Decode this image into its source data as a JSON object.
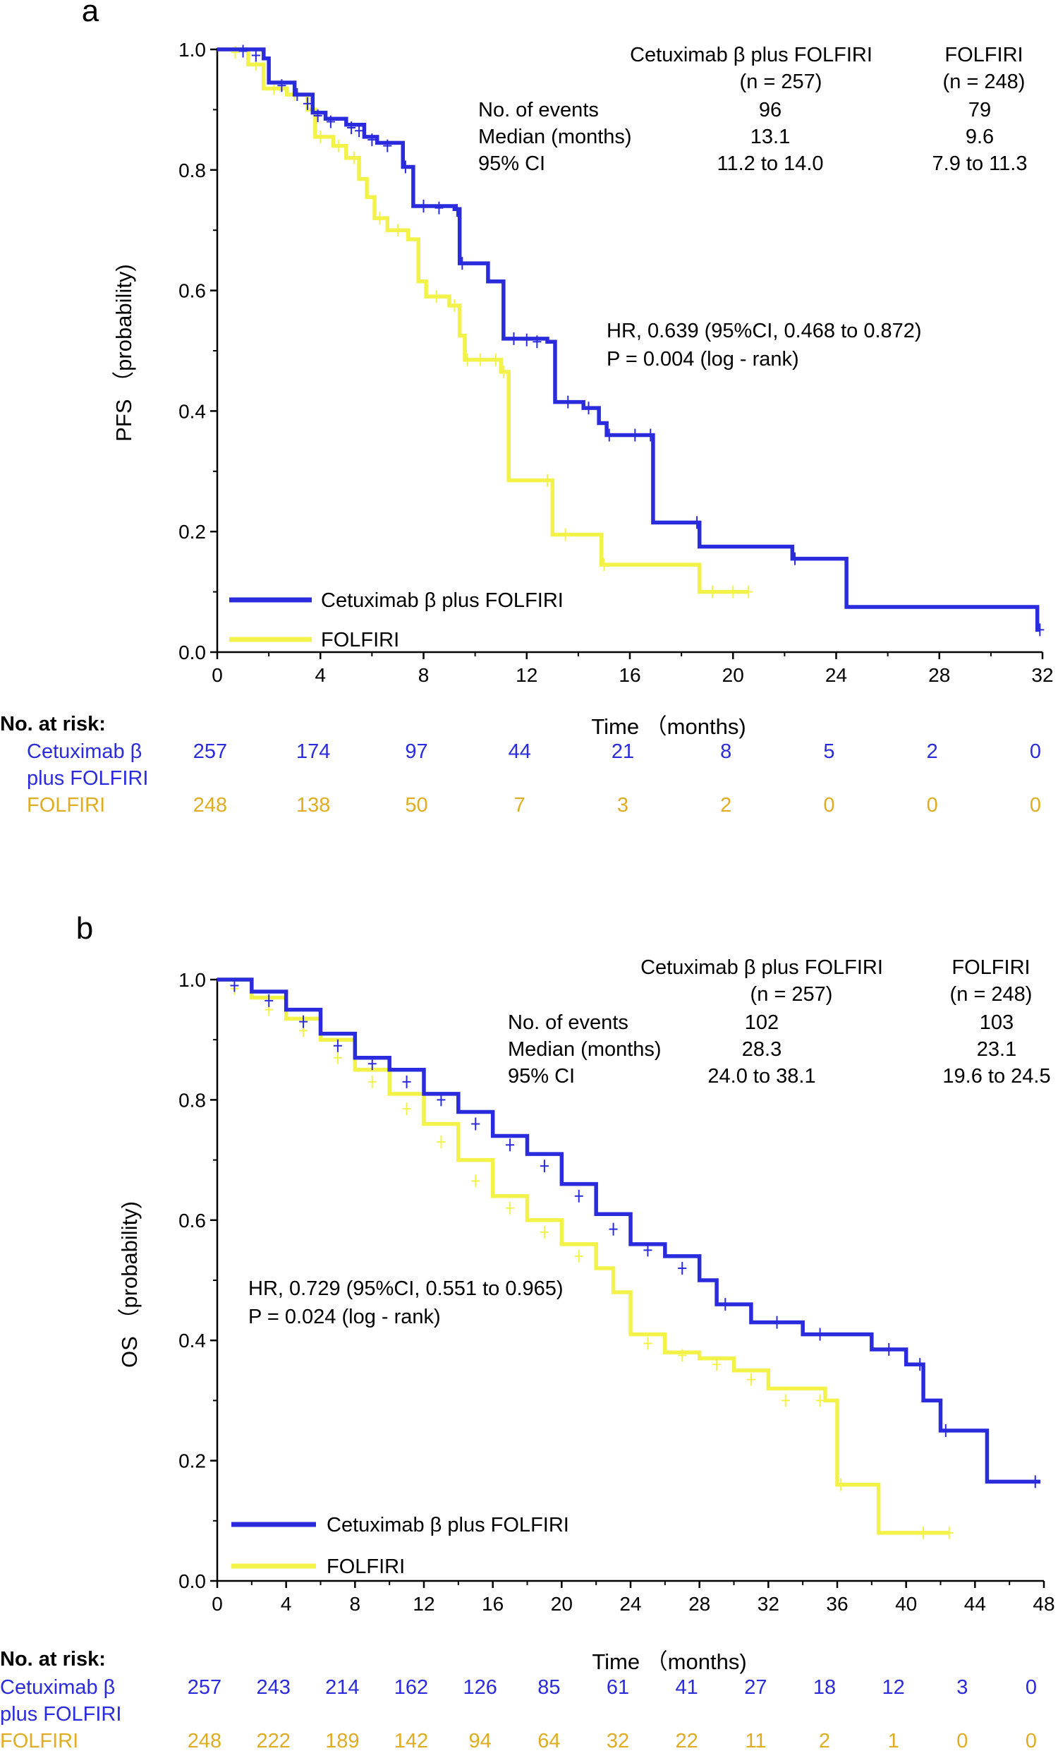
{
  "colors": {
    "treatment": "#2b2bde",
    "control": "#f2f249",
    "risk_control": "#e0ad22",
    "axis": "#000000"
  },
  "chart_data": [
    {
      "type": "line",
      "panel": "a",
      "ylabel": "PFS （probability)",
      "xlabel": "Time （months)",
      "xlim": [
        0,
        32
      ],
      "ylim": [
        0,
        1
      ],
      "xticks": [
        "0",
        "4",
        "8",
        "12",
        "16",
        "20",
        "24",
        "28",
        "32"
      ],
      "yticks": [
        "0.0",
        "0.2",
        "0.4",
        "0.6",
        "0.8",
        "1.0"
      ],
      "legend": [
        "Cetuximab β plus FOLFIRI",
        "FOLFIRI"
      ],
      "stats": {
        "col_headers": [
          [
            "Cetuximab β plus FOLFIRI",
            "(n = 257)"
          ],
          [
            "FOLFIRI",
            "(n = 248)"
          ]
        ],
        "rows": [
          {
            "label": "No. of events",
            "treat": "96",
            "ctrl": "79"
          },
          {
            "label": "Median (months)",
            "treat": "13.1",
            "ctrl": "9.6"
          },
          {
            "label": "95% CI",
            "treat": "11.2 to 14.0",
            "ctrl": "7.9 to 11.3"
          }
        ]
      },
      "hr_text": [
        "HR, 0.639 (95%CI, 0.468 to 0.872)",
        "P = 0.004 (log - rank)"
      ],
      "risk": {
        "title": "No. at risk:",
        "treat_label": [
          "Cetuximab β",
          "plus FOLFIRI"
        ],
        "ctrl_label": "FOLFIRI",
        "treat": [
          "257",
          "174",
          "97",
          "44",
          "21",
          "8",
          "5",
          "2",
          "0"
        ],
        "ctrl": [
          "248",
          "138",
          "50",
          "7",
          "3",
          "2",
          "0",
          "0",
          "0"
        ]
      },
      "series": [
        {
          "name": "Cetuximab β plus FOLFIRI",
          "steps": [
            [
              0,
              1.0
            ],
            [
              1.8,
              0.985
            ],
            [
              2.0,
              0.945
            ],
            [
              3.0,
              0.925
            ],
            [
              3.7,
              0.895
            ],
            [
              4.2,
              0.885
            ],
            [
              5.0,
              0.875
            ],
            [
              5.7,
              0.855
            ],
            [
              6.2,
              0.845
            ],
            [
              7.2,
              0.805
            ],
            [
              7.6,
              0.74
            ],
            [
              9.2,
              0.735
            ],
            [
              9.4,
              0.645
            ],
            [
              10.5,
              0.615
            ],
            [
              11.1,
              0.52
            ],
            [
              12.8,
              0.515
            ],
            [
              13.1,
              0.415
            ],
            [
              14.2,
              0.405
            ],
            [
              14.8,
              0.38
            ],
            [
              15.1,
              0.36
            ],
            [
              16.9,
              0.215
            ],
            [
              18.7,
              0.175
            ],
            [
              22.3,
              0.155
            ],
            [
              24.4,
              0.075
            ],
            [
              31.8,
              0.037
            ]
          ],
          "end": 31.9,
          "censor": [
            [
              1.0,
              0.997
            ],
            [
              1.5,
              0.99
            ],
            [
              2.5,
              0.94
            ],
            [
              3.1,
              0.925
            ],
            [
              3.5,
              0.91
            ],
            [
              3.9,
              0.89
            ],
            [
              4.4,
              0.88
            ],
            [
              5.2,
              0.87
            ],
            [
              5.5,
              0.865
            ],
            [
              6.0,
              0.85
            ],
            [
              6.6,
              0.84
            ],
            [
              7.3,
              0.805
            ],
            [
              8.0,
              0.74
            ],
            [
              8.6,
              0.737
            ],
            [
              9.3,
              0.733
            ],
            [
              9.5,
              0.645
            ],
            [
              11.5,
              0.52
            ],
            [
              12.0,
              0.518
            ],
            [
              12.4,
              0.515
            ],
            [
              13.6,
              0.415
            ],
            [
              14.4,
              0.405
            ],
            [
              15.2,
              0.36
            ],
            [
              16.2,
              0.36
            ],
            [
              16.8,
              0.36
            ],
            [
              18.6,
              0.215
            ],
            [
              22.4,
              0.155
            ],
            [
              31.9,
              0.037
            ]
          ]
        },
        {
          "name": "FOLFIRI",
          "steps": [
            [
              0,
              1.0
            ],
            [
              1.2,
              0.975
            ],
            [
              1.8,
              0.935
            ],
            [
              2.7,
              0.925
            ],
            [
              3.5,
              0.9
            ],
            [
              3.8,
              0.855
            ],
            [
              4.5,
              0.84
            ],
            [
              5.0,
              0.82
            ],
            [
              5.5,
              0.785
            ],
            [
              5.8,
              0.755
            ],
            [
              6.1,
              0.72
            ],
            [
              6.6,
              0.7
            ],
            [
              7.4,
              0.685
            ],
            [
              7.8,
              0.615
            ],
            [
              8.1,
              0.59
            ],
            [
              9.0,
              0.575
            ],
            [
              9.4,
              0.525
            ],
            [
              9.6,
              0.485
            ],
            [
              11.0,
              0.465
            ],
            [
              11.3,
              0.285
            ],
            [
              13.0,
              0.195
            ],
            [
              14.9,
              0.145
            ],
            [
              18.7,
              0.1
            ]
          ],
          "end": 20.6,
          "censor": [
            [
              0.7,
              0.995
            ],
            [
              1.5,
              0.975
            ],
            [
              2.2,
              0.935
            ],
            [
              3.0,
              0.925
            ],
            [
              4.0,
              0.855
            ],
            [
              4.7,
              0.84
            ],
            [
              5.3,
              0.82
            ],
            [
              6.3,
              0.72
            ],
            [
              7.0,
              0.7
            ],
            [
              8.5,
              0.59
            ],
            [
              9.2,
              0.575
            ],
            [
              9.7,
              0.485
            ],
            [
              10.2,
              0.485
            ],
            [
              10.8,
              0.485
            ],
            [
              11.1,
              0.465
            ],
            [
              12.8,
              0.285
            ],
            [
              13.5,
              0.195
            ],
            [
              15.0,
              0.145
            ],
            [
              19.2,
              0.1
            ],
            [
              20.0,
              0.1
            ],
            [
              20.6,
              0.1
            ]
          ]
        }
      ]
    },
    {
      "type": "line",
      "panel": "b",
      "ylabel": "OS （probability)",
      "xlabel": "Time （months)",
      "xlim": [
        0,
        48
      ],
      "ylim": [
        0,
        1
      ],
      "xticks": [
        "0",
        "4",
        "8",
        "12",
        "16",
        "20",
        "24",
        "28",
        "32",
        "36",
        "40",
        "44",
        "48"
      ],
      "yticks": [
        "0.0",
        "0.2",
        "0.4",
        "0.6",
        "0.8",
        "1.0"
      ],
      "legend": [
        "Cetuximab β plus FOLFIRI",
        "FOLFIRI"
      ],
      "stats": {
        "col_headers": [
          [
            "Cetuximab β plus FOLFIRI",
            "(n = 257)"
          ],
          [
            "FOLFIRI",
            "(n = 248)"
          ]
        ],
        "rows": [
          {
            "label": "No. of events",
            "treat": "102",
            "ctrl": "103"
          },
          {
            "label": "Median (months)",
            "treat": "28.3",
            "ctrl": "23.1"
          },
          {
            "label": "95% CI",
            "treat": "24.0 to 38.1",
            "ctrl": "19.6 to 24.5"
          }
        ]
      },
      "hr_text": [
        "HR, 0.729 (95%CI, 0.551 to 0.965)",
        "P = 0.024 (log - rank)"
      ],
      "risk": {
        "title": "No. at risk:",
        "treat_label": [
          "Cetuximab β",
          "plus FOLFIRI"
        ],
        "ctrl_label": "FOLFIRI",
        "treat": [
          "257",
          "243",
          "214",
          "162",
          "126",
          "85",
          "61",
          "41",
          "27",
          "18",
          "12",
          "3",
          "0"
        ],
        "ctrl": [
          "248",
          "222",
          "189",
          "142",
          "94",
          "64",
          "32",
          "22",
          "11",
          "2",
          "1",
          "0",
          "0"
        ]
      },
      "series": [
        {
          "name": "Cetuximab β plus FOLFIRI",
          "steps": [
            [
              0,
              1.0
            ],
            [
              2,
              0.98
            ],
            [
              4,
              0.95
            ],
            [
              6,
              0.91
            ],
            [
              8,
              0.87
            ],
            [
              10,
              0.85
            ],
            [
              12,
              0.81
            ],
            [
              14,
              0.78
            ],
            [
              16,
              0.74
            ],
            [
              18,
              0.71
            ],
            [
              20,
              0.66
            ],
            [
              22,
              0.61
            ],
            [
              24,
              0.56
            ],
            [
              26,
              0.54
            ],
            [
              28,
              0.5
            ],
            [
              29,
              0.46
            ],
            [
              31,
              0.43
            ],
            [
              34,
              0.41
            ],
            [
              38,
              0.385
            ],
            [
              40,
              0.36
            ],
            [
              41,
              0.3
            ],
            [
              42,
              0.25
            ],
            [
              44.7,
              0.165
            ]
          ],
          "end": 47.8,
          "censor": [
            [
              1,
              0.99
            ],
            [
              3,
              0.965
            ],
            [
              5,
              0.93
            ],
            [
              7,
              0.89
            ],
            [
              9,
              0.86
            ],
            [
              11,
              0.83
            ],
            [
              13,
              0.8
            ],
            [
              15,
              0.76
            ],
            [
              17,
              0.725
            ],
            [
              19,
              0.69
            ],
            [
              21,
              0.64
            ],
            [
              23,
              0.585
            ],
            [
              25,
              0.55
            ],
            [
              27,
              0.52
            ],
            [
              29.5,
              0.46
            ],
            [
              32.5,
              0.43
            ],
            [
              35,
              0.41
            ],
            [
              39,
              0.385
            ],
            [
              40.8,
              0.36
            ],
            [
              42.3,
              0.25
            ],
            [
              47.5,
              0.165
            ]
          ]
        },
        {
          "name": "FOLFIRI",
          "steps": [
            [
              0,
              1.0
            ],
            [
              2,
              0.97
            ],
            [
              4,
              0.935
            ],
            [
              6,
              0.9
            ],
            [
              8,
              0.85
            ],
            [
              10,
              0.81
            ],
            [
              12,
              0.76
            ],
            [
              14,
              0.7
            ],
            [
              16,
              0.64
            ],
            [
              18,
              0.6
            ],
            [
              20,
              0.56
            ],
            [
              22,
              0.52
            ],
            [
              23,
              0.48
            ],
            [
              24,
              0.41
            ],
            [
              26,
              0.38
            ],
            [
              28,
              0.37
            ],
            [
              30,
              0.35
            ],
            [
              32,
              0.32
            ],
            [
              35.3,
              0.3
            ],
            [
              36,
              0.16
            ],
            [
              38.4,
              0.08
            ]
          ],
          "end": 42.5,
          "censor": [
            [
              1,
              0.985
            ],
            [
              3,
              0.95
            ],
            [
              5,
              0.915
            ],
            [
              7,
              0.87
            ],
            [
              9,
              0.83
            ],
            [
              11,
              0.785
            ],
            [
              13,
              0.73
            ],
            [
              15,
              0.665
            ],
            [
              17,
              0.62
            ],
            [
              19,
              0.58
            ],
            [
              21,
              0.54
            ],
            [
              25,
              0.395
            ],
            [
              27,
              0.375
            ],
            [
              29,
              0.36
            ],
            [
              31,
              0.335
            ],
            [
              33,
              0.3
            ],
            [
              35,
              0.3
            ],
            [
              36.2,
              0.16
            ],
            [
              41,
              0.08
            ],
            [
              42.5,
              0.08
            ]
          ]
        }
      ]
    }
  ]
}
